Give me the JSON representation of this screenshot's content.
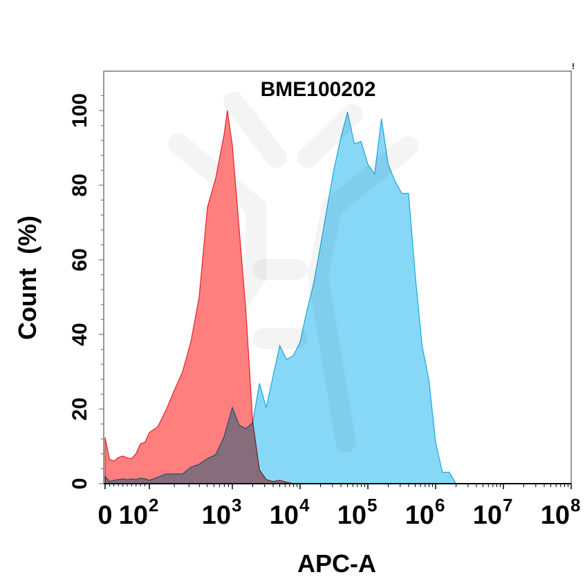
{
  "chart_data": {
    "type": "area",
    "title": "BME100202",
    "xlabel": "APC-A",
    "ylabel": "Count  (%)",
    "corner_mark": "!",
    "x_scale": "biexponential",
    "xlim": [
      0,
      100000000
    ],
    "ylim": [
      0,
      100
    ],
    "x_ticks": [
      {
        "value": 0,
        "base": "0",
        "exp": ""
      },
      {
        "value": 100,
        "base": "10",
        "exp": "2"
      },
      {
        "value": 1000,
        "base": "10",
        "exp": "3"
      },
      {
        "value": 10000,
        "base": "10",
        "exp": "4"
      },
      {
        "value": 100000,
        "base": "10",
        "exp": "5"
      },
      {
        "value": 1000000,
        "base": "10",
        "exp": "6"
      },
      {
        "value": 10000000,
        "base": "10",
        "exp": "7"
      },
      {
        "value": 100000000,
        "base": "10",
        "exp": "8"
      }
    ],
    "y_ticks": [
      "0",
      "20",
      "40",
      "60",
      "80",
      "100"
    ],
    "grid": false,
    "legend": "none",
    "series": [
      {
        "color_fill": "#ff7f7f",
        "color_line": "#e3202a",
        "x": [
          0,
          10,
          20,
          30,
          40,
          50,
          60,
          70,
          80,
          90,
          100,
          126,
          158,
          200,
          251,
          316,
          398,
          501,
          631,
          794,
          871,
          1000,
          1259,
          1585,
          1995,
          2512,
          3162,
          3981,
          5012,
          6310,
          7943
        ],
        "y": [
          12.4,
          6.5,
          6.1,
          7.0,
          7.4,
          6.9,
          6.7,
          8.1,
          10.7,
          11.1,
          13.7,
          15.2,
          19.6,
          25.0,
          30.0,
          38.0,
          50.0,
          74.1,
          81.9,
          93.5,
          100,
          90.7,
          68.5,
          46.3,
          16.7,
          3.7,
          1.1,
          0.6,
          0.9,
          0.4,
          0
        ]
      },
      {
        "color_fill": "#87d8f7",
        "color_line": "#1ba5d9",
        "x": [
          0,
          10,
          20,
          30,
          40,
          50,
          60,
          70,
          80,
          90,
          100,
          126,
          158,
          200,
          251,
          316,
          398,
          501,
          631,
          794,
          1000,
          1259,
          1585,
          1995,
          2512,
          3162,
          3981,
          5012,
          6310,
          7943,
          10000,
          12589,
          15849,
          19953,
          25119,
          31623,
          39811,
          50119,
          63096,
          79433,
          100000,
          125893,
          158489,
          199526,
          251189,
          316228,
          398107,
          501187,
          630957,
          794328,
          1000000,
          1258925,
          1584893,
          1995262
        ],
        "y": [
          1.9,
          0.6,
          0.9,
          1.1,
          1.3,
          1.1,
          1.3,
          1.1,
          1.5,
          1.3,
          0.9,
          1.7,
          2.6,
          2.6,
          2.6,
          4.4,
          5.2,
          6.7,
          7.8,
          12.6,
          20.4,
          15.7,
          14.8,
          16.3,
          26.9,
          20.4,
          28.7,
          37.0,
          33.3,
          34.3,
          38.0,
          46.3,
          53.7,
          63.7,
          74.1,
          84.3,
          92.6,
          99.6,
          91.1,
          91.7,
          85.6,
          83.0,
          97.8,
          85.6,
          81.1,
          77.8,
          77.8,
          55.6,
          37.0,
          27.8,
          11.1,
          3.0,
          3.1,
          0
        ]
      }
    ]
  }
}
